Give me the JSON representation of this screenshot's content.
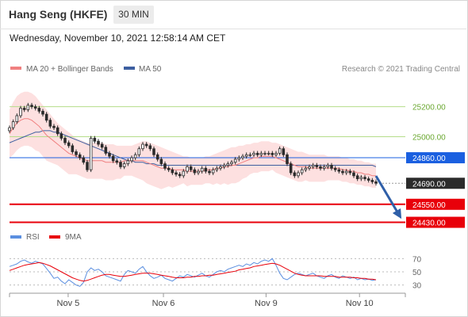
{
  "header": {
    "title": "Hang Seng (HKFE)",
    "interval": "30 MIN",
    "datetime": "Wednesday, November 10, 2021 12:58:14 AM CET"
  },
  "legend": {
    "ma20_label": "MA 20 + Bollinger Bands",
    "ma50_label": "MA 50",
    "rsi_label": "RSI",
    "rsi_ma_label": "9MA"
  },
  "credit": "Research © 2021 Trading Central",
  "colors": {
    "ma20": "#f08080",
    "ma50": "#3d5fa0",
    "bollinger_fill": "#fde0e0",
    "resistance_green": "#b5dd8a",
    "pivot_blue": "#1a5fe0",
    "support_red": "#e8000a",
    "last_price": "#2b2b2b",
    "candle": "#2b2b2b",
    "rsi": "#5b8fe0",
    "rsi_ma": "#e8000a",
    "arrow": "#2f5fa8"
  },
  "chart_data": [
    {
      "type": "candlestick",
      "title": "Hang Seng (HKFE)",
      "x_ticks": [
        "Nov 5",
        "Nov 6",
        "Nov 9",
        "Nov 10"
      ],
      "ylim": [
        24380,
        25330
      ],
      "levels": [
        {
          "label": "25200.00",
          "value": 25200,
          "kind": "resistance",
          "color": "#b5dd8a"
        },
        {
          "label": "25000.00",
          "value": 25000,
          "kind": "resistance",
          "color": "#b5dd8a"
        },
        {
          "label": "24860.00",
          "value": 24860,
          "kind": "pivot",
          "color": "#1a5fe0"
        },
        {
          "label": "24690.00",
          "value": 24690,
          "kind": "last",
          "color": "#2b2b2b"
        },
        {
          "label": "24550.00",
          "value": 24550,
          "kind": "support",
          "color": "#e8000a"
        },
        {
          "label": "24430.00",
          "value": 24430,
          "kind": "support",
          "color": "#e8000a"
        }
      ],
      "closes": [
        25060,
        25100,
        25140,
        25190,
        25180,
        25210,
        25200,
        25190,
        25170,
        25150,
        25110,
        25070,
        25060,
        25020,
        24990,
        24960,
        24940,
        24900,
        24880,
        24860,
        24830,
        24780,
        24990,
        24970,
        24950,
        24930,
        24890,
        24870,
        24840,
        24830,
        24800,
        24820,
        24840,
        24860,
        24880,
        24920,
        24950,
        24940,
        24920,
        24880,
        24850,
        24820,
        24790,
        24780,
        24760,
        24750,
        24740,
        24770,
        24800,
        24780,
        24760,
        24770,
        24790,
        24770,
        24760,
        24780,
        24790,
        24800,
        24810,
        24820,
        24830,
        24850,
        24860,
        24870,
        24880,
        24880,
        24890,
        24880,
        24890,
        24890,
        24890,
        24880,
        24890,
        24920,
        24880,
        24820,
        24760,
        24740,
        24760,
        24780,
        24790,
        24800,
        24810,
        24800,
        24790,
        24800,
        24810,
        24790,
        24780,
        24770,
        24760,
        24770,
        24760,
        24740,
        24720,
        24730,
        24720,
        24710,
        24700,
        24690
      ],
      "ma20": [
        25020,
        25060,
        25090,
        25110,
        25120,
        25120,
        25110,
        25090,
        25070,
        25040,
        25010,
        24990,
        24970,
        24950,
        24930,
        24910,
        24890,
        24880,
        24870,
        24860,
        24850,
        24840,
        24840,
        24840,
        24840,
        24840,
        24830,
        24830,
        24830,
        24830,
        24830,
        24840,
        24840,
        24840,
        24840,
        24840,
        24840,
        24830,
        24820,
        24810,
        24800,
        24790,
        24790,
        24790,
        24780,
        24780,
        24780,
        24780,
        24770,
        24770,
        24770,
        24770,
        24770,
        24780,
        24780,
        24780,
        24790,
        24790,
        24800,
        24800,
        24810,
        24810,
        24820,
        24830,
        24840,
        24850,
        24860,
        24860,
        24870,
        24870,
        24870,
        24870,
        24860,
        24850,
        24840,
        24830,
        24820,
        24810,
        24800,
        24800,
        24800,
        24790,
        24790,
        24790,
        24790,
        24790,
        24790,
        24790,
        24790,
        24790,
        24780,
        24780,
        24770,
        24770,
        24760,
        24760,
        24750,
        24750,
        24740,
        24740
      ],
      "ma50": [
        24960,
        24970,
        24980,
        24990,
        25000,
        25010,
        25020,
        25030,
        25030,
        25040,
        25040,
        25040,
        25030,
        25030,
        25020,
        25010,
        25000,
        24990,
        24980,
        24970,
        24960,
        24950,
        24940,
        24930,
        24920,
        24910,
        24900,
        24890,
        24880,
        24870,
        24860,
        24850,
        24840,
        24840,
        24830,
        24830,
        24830,
        24820,
        24820,
        24820,
        24810,
        24810,
        24810,
        24810,
        24810,
        24810,
        24810,
        24810,
        24810,
        24810,
        24810,
        24810,
        24810,
        24810,
        24810,
        24810,
        24810,
        24810,
        24810,
        24810,
        24810,
        24810,
        24810,
        24810,
        24810,
        24810,
        24810,
        24810,
        24810,
        24810,
        24810,
        24810,
        24810,
        24810,
        24810,
        24810,
        24810,
        24810,
        24810,
        24810,
        24810,
        24810,
        24810,
        24810,
        24810,
        24810,
        24810,
        24810,
        24810,
        24810,
        24810,
        24810,
        24810,
        24810,
        24810,
        24810,
        24810,
        24810,
        24810,
        24800
      ],
      "boll_upper": [
        25180,
        25230,
        25270,
        25290,
        25300,
        25300,
        25290,
        25270,
        25240,
        25210,
        25180,
        25150,
        25120,
        25090,
        25070,
        25050,
        25030,
        25010,
        24990,
        24980,
        24970,
        24960,
        24960,
        24960,
        24960,
        24960,
        24950,
        24950,
        24950,
        24940,
        24940,
        24940,
        24940,
        24940,
        24950,
        24960,
        24970,
        24970,
        24960,
        24950,
        24940,
        24930,
        24920,
        24910,
        24900,
        24890,
        24880,
        24870,
        24870,
        24860,
        24860,
        24860,
        24860,
        24870,
        24870,
        24880,
        24890,
        24900,
        24910,
        24920,
        24930,
        24930,
        24940,
        24940,
        24950,
        24950,
        24960,
        24960,
        24970,
        24970,
        24970,
        24960,
        24960,
        24950,
        24940,
        24930,
        24920,
        24910,
        24900,
        24900,
        24890,
        24880,
        24880,
        24880,
        24880,
        24880,
        24870,
        24870,
        24870,
        24870,
        24860,
        24860,
        24850,
        24850,
        24840,
        24840,
        24830,
        24830,
        24820,
        24820
      ],
      "boll_lower": [
        24860,
        24880,
        24910,
        24930,
        24940,
        24940,
        24930,
        24910,
        24900,
        24870,
        24840,
        24830,
        24820,
        24810,
        24790,
        24770,
        24750,
        24750,
        24750,
        24740,
        24730,
        24720,
        24720,
        24720,
        24720,
        24720,
        24710,
        24710,
        24710,
        24720,
        24720,
        24740,
        24740,
        24740,
        24730,
        24720,
        24710,
        24690,
        24680,
        24670,
        24660,
        24650,
        24660,
        24670,
        24660,
        24670,
        24680,
        24690,
        24670,
        24680,
        24680,
        24680,
        24680,
        24690,
        24690,
        24680,
        24690,
        24680,
        24690,
        24680,
        24690,
        24690,
        24700,
        24720,
        24730,
        24750,
        24760,
        24760,
        24770,
        24770,
        24770,
        24780,
        24760,
        24750,
        24740,
        24730,
        24720,
        24710,
        24700,
        24700,
        24710,
        24700,
        24700,
        24700,
        24700,
        24700,
        24710,
        24710,
        24710,
        24710,
        24700,
        24700,
        24690,
        24690,
        24680,
        24680,
        24670,
        24670,
        24660,
        24660
      ]
    },
    {
      "type": "line",
      "title": "RSI",
      "yticks": [
        30,
        50,
        70
      ],
      "ylim": [
        20,
        80
      ],
      "series": [
        {
          "name": "RSI",
          "values": [
            58,
            60,
            62,
            66,
            68,
            65,
            63,
            66,
            64,
            62,
            55,
            48,
            40,
            42,
            36,
            32,
            38,
            34,
            30,
            28,
            34,
            50,
            56,
            52,
            54,
            50,
            44,
            42,
            40,
            38,
            36,
            46,
            52,
            50,
            48,
            54,
            58,
            50,
            44,
            40,
            42,
            45,
            40,
            38,
            36,
            40,
            44,
            42,
            46,
            44,
            42,
            45,
            48,
            44,
            42,
            46,
            50,
            52,
            50,
            54,
            56,
            58,
            60,
            58,
            62,
            60,
            64,
            62,
            66,
            68,
            66,
            70,
            60,
            48,
            40,
            38,
            42,
            46,
            48,
            46,
            44,
            46,
            48,
            44,
            42,
            40,
            44,
            46,
            42,
            40,
            44,
            42,
            40,
            42,
            38,
            40,
            38,
            39,
            37,
            38
          ]
        },
        {
          "name": "9MA",
          "values": [
            52,
            54,
            56,
            58,
            60,
            61,
            62,
            63,
            64,
            63,
            61,
            59,
            56,
            53,
            50,
            47,
            44,
            41,
            39,
            37,
            36,
            37,
            39,
            41,
            43,
            45,
            46,
            46,
            45,
            44,
            43,
            43,
            44,
            45,
            46,
            47,
            48,
            48,
            48,
            47,
            46,
            45,
            44,
            43,
            42,
            41,
            41,
            41,
            42,
            42,
            43,
            43,
            44,
            44,
            45,
            45,
            46,
            47,
            48,
            49,
            50,
            51,
            53,
            54,
            55,
            56,
            58,
            59,
            60,
            61,
            62,
            63,
            62,
            60,
            57,
            54,
            51,
            48,
            46,
            45,
            44,
            44,
            44,
            44,
            44,
            43,
            43,
            43,
            43,
            42,
            42,
            42,
            42,
            41,
            41,
            40,
            40,
            39,
            39,
            38
          ]
        }
      ]
    }
  ]
}
